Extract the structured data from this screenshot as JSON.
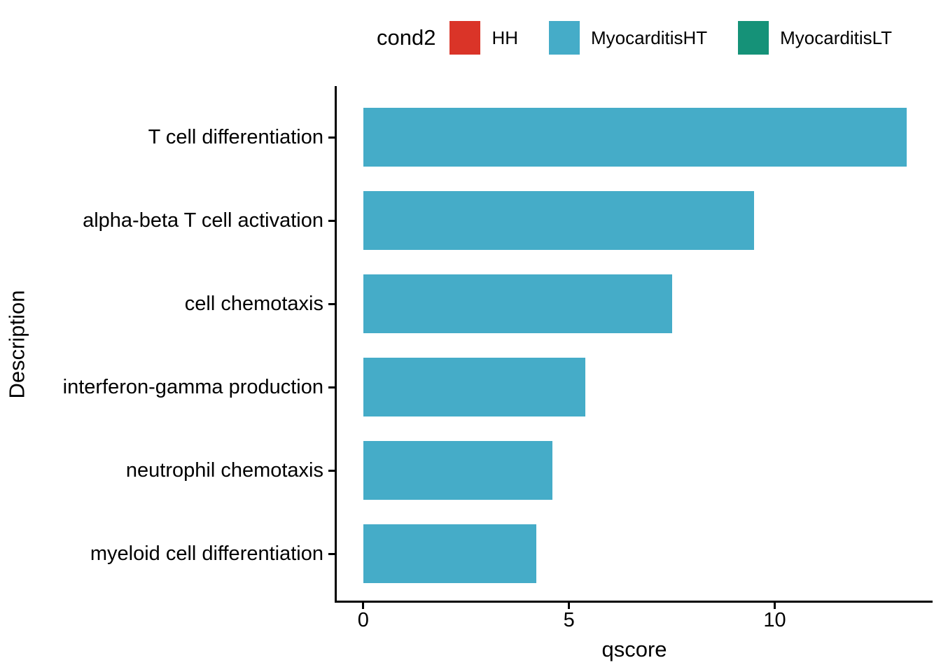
{
  "legend": {
    "title": "cond2",
    "items": [
      {
        "label": "HH",
        "color": "#da3428"
      },
      {
        "label": "MyocarditisHT",
        "color": "#45acc8"
      },
      {
        "label": "MyocarditisLT",
        "color": "#159278"
      }
    ]
  },
  "chart_data": {
    "type": "bar",
    "orientation": "horizontal",
    "title": "",
    "xlabel": "qscore",
    "ylabel": "Description",
    "categories": [
      "T cell differentiation",
      "alpha-beta T cell activation",
      "cell chemotaxis",
      "interferon-gamma production",
      "neutrophil chemotaxis",
      "myeloid cell differentiation"
    ],
    "series": [
      {
        "name": "MyocarditisHT",
        "color": "#45acc8",
        "values": [
          13.2,
          9.5,
          7.5,
          5.4,
          4.6,
          4.2
        ]
      }
    ],
    "x_ticks": [
      0,
      5,
      10
    ],
    "xlim": [
      -0.66,
      13.82
    ],
    "grid": false,
    "legend_position": "top",
    "axis_color": "#000000"
  }
}
